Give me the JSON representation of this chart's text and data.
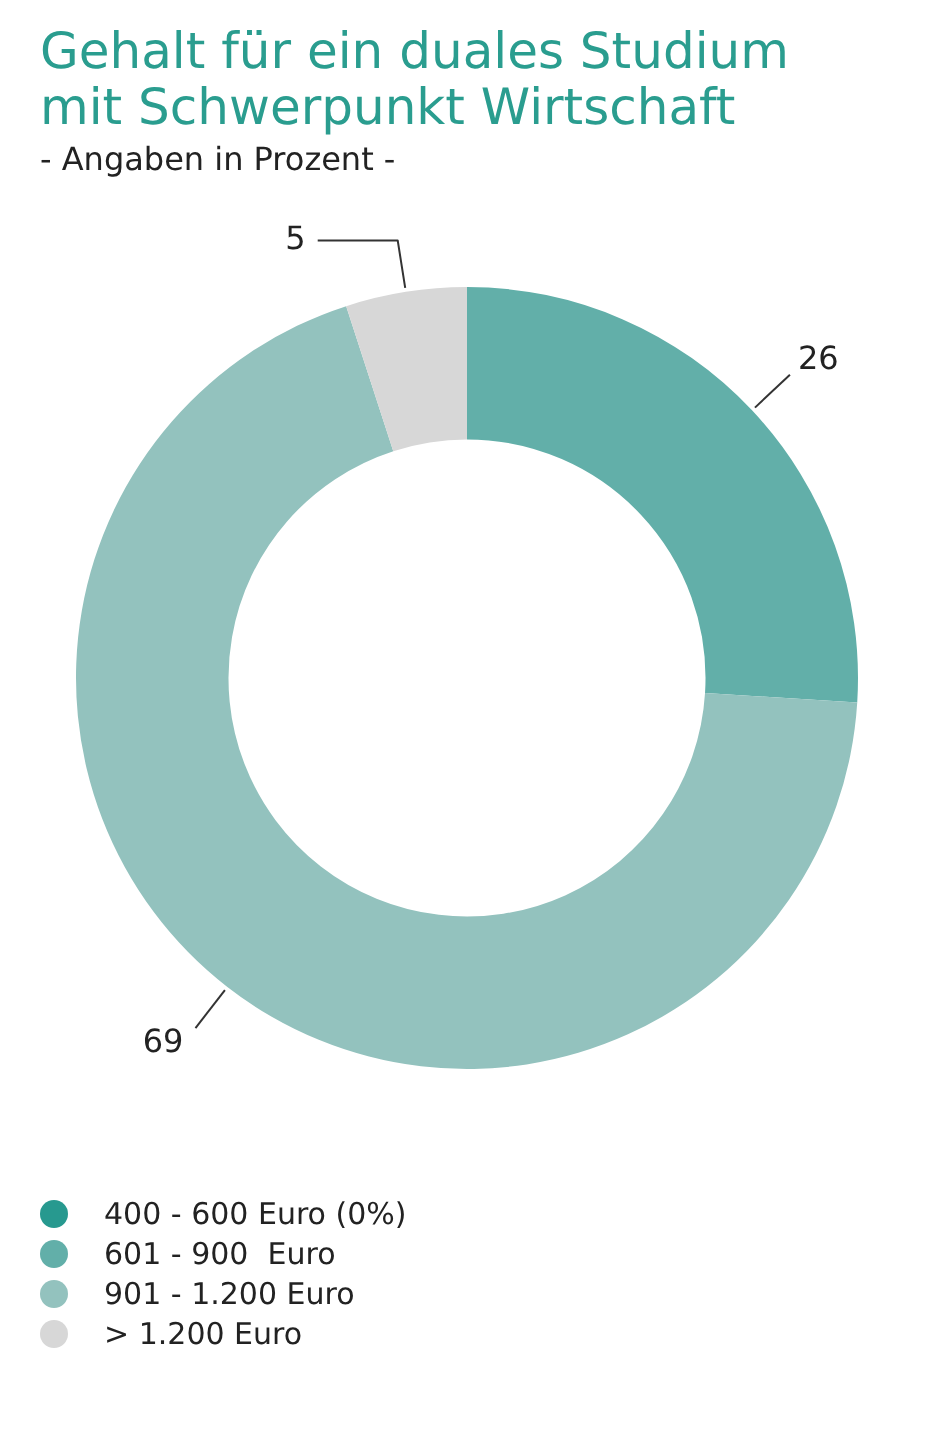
{
  "chart_data": {
    "type": "donut",
    "title": "Gehalt für ein duales Studium mit Schwerpunkt Wirtschaft",
    "subtitle": "- Angaben in Prozent -",
    "categories": [
      "400 - 600 Euro (0%)",
      "601 - 900  Euro",
      "901 - 1.200 Euro",
      "> 1.200 Euro"
    ],
    "values": [
      0,
      26,
      69,
      5
    ],
    "colors": [
      "#27998f",
      "#62afa9",
      "#93c2be",
      "#d7d7d7"
    ],
    "value_labels": [
      null,
      "26",
      "69",
      "5"
    ],
    "legend": "bottom left"
  }
}
